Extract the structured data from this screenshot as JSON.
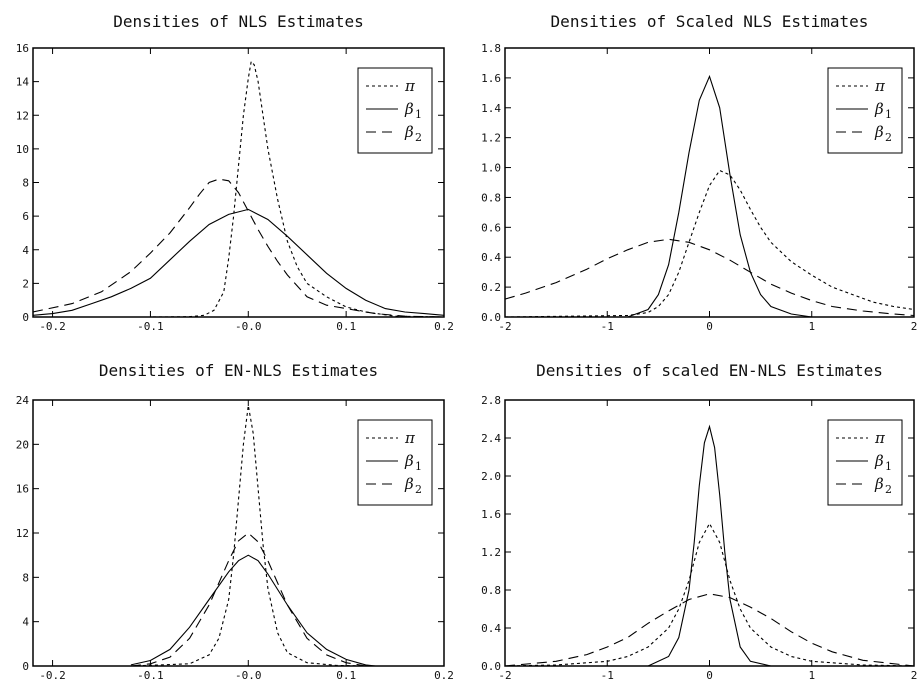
{
  "chart_data": [
    {
      "type": "line",
      "title": "Densities of NLS Estimates",
      "xlim": [
        -0.22,
        0.2
      ],
      "ylim": [
        0,
        16
      ],
      "xticks": [
        -0.2,
        -0.1,
        0.0,
        0.1,
        0.2
      ],
      "xtick_labels": [
        "-0.2",
        "-0.1",
        "-0.0",
        "0.1",
        "0.2"
      ],
      "yticks": [
        0,
        2,
        4,
        6,
        8,
        10,
        12,
        14,
        16
      ],
      "ytick_labels": [
        "0",
        "2",
        "4",
        "6",
        "8",
        "10",
        "12",
        "14",
        "16"
      ],
      "legend": {
        "position": "top-right",
        "entries": [
          {
            "symbol": "π",
            "sub": "",
            "style": "dotted"
          },
          {
            "symbol": "β",
            "sub": "1",
            "style": "solid"
          },
          {
            "symbol": "β",
            "sub": "2",
            "style": "dashed"
          }
        ]
      },
      "series": [
        {
          "style": "dotted",
          "x": [
            -0.22,
            -0.1,
            -0.06,
            -0.045,
            -0.035,
            -0.025,
            -0.02,
            -0.015,
            -0.01,
            -0.005,
            0,
            0.003,
            0.006,
            0.01,
            0.015,
            0.02,
            0.03,
            0.04,
            0.05,
            0.06,
            0.08,
            0.1,
            0.12,
            0.15,
            0.2
          ],
          "y": [
            0,
            0,
            0.02,
            0.1,
            0.4,
            1.5,
            3.5,
            6,
            9,
            12,
            14.2,
            15.2,
            15,
            14,
            12,
            10,
            7,
            4.5,
            3,
            2,
            1.2,
            0.6,
            0.3,
            0.05,
            0
          ]
        },
        {
          "style": "solid",
          "x": [
            -0.22,
            -0.2,
            -0.18,
            -0.16,
            -0.14,
            -0.12,
            -0.1,
            -0.08,
            -0.06,
            -0.04,
            -0.02,
            0,
            0.02,
            0.04,
            0.06,
            0.08,
            0.1,
            0.12,
            0.14,
            0.16,
            0.18,
            0.2
          ],
          "y": [
            0.1,
            0.2,
            0.4,
            0.8,
            1.2,
            1.7,
            2.3,
            3.4,
            4.5,
            5.5,
            6.1,
            6.4,
            5.8,
            4.8,
            3.7,
            2.6,
            1.7,
            1,
            0.5,
            0.3,
            0.2,
            0.1
          ]
        },
        {
          "style": "dashed",
          "x": [
            -0.22,
            -0.18,
            -0.15,
            -0.12,
            -0.1,
            -0.08,
            -0.06,
            -0.05,
            -0.04,
            -0.03,
            -0.02,
            -0.01,
            0,
            0.01,
            0.02,
            0.03,
            0.04,
            0.06,
            0.08,
            0.1,
            0.13,
            0.16,
            0.2
          ],
          "y": [
            0.3,
            0.8,
            1.5,
            2.7,
            3.8,
            5,
            6.5,
            7.3,
            8,
            8.2,
            8.1,
            7.4,
            6.3,
            5.2,
            4.2,
            3.3,
            2.5,
            1.2,
            0.7,
            0.5,
            0.2,
            0.05,
            0
          ]
        }
      ]
    },
    {
      "type": "line",
      "title": "Densities of Scaled NLS Estimates",
      "xlim": [
        -2,
        2
      ],
      "ylim": [
        0,
        1.8
      ],
      "xticks": [
        -2,
        -1,
        0,
        1,
        2
      ],
      "xtick_labels": [
        "-2",
        "-1",
        "0",
        "1",
        "2"
      ],
      "yticks": [
        0,
        0.2,
        0.4,
        0.6,
        0.8,
        1.0,
        1.2,
        1.4,
        1.6,
        1.8
      ],
      "ytick_labels": [
        "0.0",
        "0.2",
        "0.4",
        "0.6",
        "0.8",
        "1.0",
        "1.2",
        "1.4",
        "1.6",
        "1.8"
      ],
      "legend": {
        "position": "top-right",
        "entries": [
          {
            "symbol": "π",
            "sub": "",
            "style": "dotted"
          },
          {
            "symbol": "β",
            "sub": "1",
            "style": "solid"
          },
          {
            "symbol": "β",
            "sub": "2",
            "style": "dashed"
          }
        ]
      },
      "series": [
        {
          "style": "dotted",
          "x": [
            -2,
            -0.8,
            -0.6,
            -0.5,
            -0.4,
            -0.3,
            -0.2,
            -0.1,
            0,
            0.1,
            0.2,
            0.3,
            0.4,
            0.5,
            0.6,
            0.8,
            1,
            1.2,
            1.4,
            1.6,
            1.8,
            2
          ],
          "y": [
            0,
            0.01,
            0.03,
            0.07,
            0.15,
            0.3,
            0.5,
            0.7,
            0.88,
            0.98,
            0.95,
            0.85,
            0.72,
            0.6,
            0.5,
            0.37,
            0.28,
            0.2,
            0.15,
            0.1,
            0.07,
            0.05
          ]
        },
        {
          "style": "solid",
          "x": [
            -0.8,
            -0.6,
            -0.5,
            -0.4,
            -0.3,
            -0.2,
            -0.1,
            0,
            0.1,
            0.2,
            0.3,
            0.4,
            0.5,
            0.6,
            0.8,
            1
          ],
          "y": [
            0,
            0.05,
            0.15,
            0.35,
            0.7,
            1.1,
            1.45,
            1.61,
            1.4,
            0.95,
            0.55,
            0.3,
            0.15,
            0.07,
            0.02,
            0
          ]
        },
        {
          "style": "dashed",
          "x": [
            -2,
            -1.8,
            -1.5,
            -1.2,
            -1,
            -0.8,
            -0.6,
            -0.4,
            -0.2,
            0,
            0.2,
            0.4,
            0.6,
            0.8,
            1,
            1.2,
            1.5,
            1.8,
            2
          ],
          "y": [
            0.12,
            0.16,
            0.23,
            0.32,
            0.39,
            0.45,
            0.5,
            0.52,
            0.5,
            0.45,
            0.38,
            0.3,
            0.22,
            0.16,
            0.11,
            0.07,
            0.04,
            0.02,
            0.01
          ]
        }
      ]
    },
    {
      "type": "line",
      "title": "Densities of EN-NLS Estimates",
      "xlim": [
        -0.22,
        0.2
      ],
      "ylim": [
        0,
        24
      ],
      "xticks": [
        -0.2,
        -0.1,
        0.0,
        0.1,
        0.2
      ],
      "xtick_labels": [
        "-0.2",
        "-0.1",
        "-0.0",
        "0.1",
        "0.2"
      ],
      "yticks": [
        0,
        4,
        8,
        12,
        16,
        20,
        24
      ],
      "ytick_labels": [
        "0",
        "4",
        "8",
        "12",
        "16",
        "20",
        "24"
      ],
      "legend": {
        "position": "top-right",
        "entries": [
          {
            "symbol": "π",
            "sub": "",
            "style": "dotted"
          },
          {
            "symbol": "β",
            "sub": "1",
            "style": "solid"
          },
          {
            "symbol": "β",
            "sub": "2",
            "style": "dashed"
          }
        ]
      },
      "series": [
        {
          "style": "dotted",
          "x": [
            -0.12,
            -0.06,
            -0.04,
            -0.03,
            -0.02,
            -0.015,
            -0.01,
            -0.005,
            0,
            0.005,
            0.01,
            0.015,
            0.02,
            0.03,
            0.04,
            0.06,
            0.09,
            0.12
          ],
          "y": [
            0,
            0.2,
            1,
            2.5,
            6,
            10,
            15,
            20,
            23.5,
            21,
            16,
            11,
            7,
            3,
            1.2,
            0.3,
            0.05,
            0
          ]
        },
        {
          "style": "solid",
          "x": [
            -0.12,
            -0.1,
            -0.08,
            -0.06,
            -0.04,
            -0.02,
            -0.01,
            0,
            0.01,
            0.02,
            0.04,
            0.06,
            0.08,
            0.1,
            0.12,
            0.13
          ],
          "y": [
            0.1,
            0.5,
            1.5,
            3.5,
            6,
            8.5,
            9.5,
            10,
            9.5,
            8.3,
            5.5,
            3,
            1.5,
            0.6,
            0.1,
            0
          ]
        },
        {
          "style": "dashed",
          "x": [
            -0.12,
            -0.1,
            -0.08,
            -0.06,
            -0.04,
            -0.03,
            -0.02,
            -0.01,
            0,
            0.01,
            0.02,
            0.03,
            0.04,
            0.06,
            0.08,
            0.1,
            0.12
          ],
          "y": [
            0,
            0.2,
            0.8,
            2.5,
            5.5,
            7.5,
            9.5,
            11.3,
            12,
            11.2,
            9.5,
            7.5,
            5.5,
            2.5,
            1,
            0.3,
            0
          ]
        }
      ]
    },
    {
      "type": "line",
      "title": "Densities of scaled EN-NLS Estimates",
      "xlim": [
        -2,
        2
      ],
      "ylim": [
        0,
        2.8
      ],
      "xticks": [
        -2,
        -1,
        0,
        1,
        2
      ],
      "xtick_labels": [
        "-2",
        "-1",
        "0",
        "1",
        "2"
      ],
      "yticks": [
        0,
        0.4,
        0.8,
        1.2,
        1.6,
        2.0,
        2.4,
        2.8
      ],
      "ytick_labels": [
        "0.0",
        "0.4",
        "0.8",
        "1.2",
        "1.6",
        "2.0",
        "2.4",
        "2.8"
      ],
      "legend": {
        "position": "top-right",
        "entries": [
          {
            "symbol": "π",
            "sub": "",
            "style": "dotted"
          },
          {
            "symbol": "β",
            "sub": "1",
            "style": "solid"
          },
          {
            "symbol": "β",
            "sub": "2",
            "style": "dashed"
          }
        ]
      },
      "series": [
        {
          "style": "dotted",
          "x": [
            -2,
            -1.5,
            -1,
            -0.8,
            -0.6,
            -0.4,
            -0.3,
            -0.2,
            -0.1,
            0,
            0.1,
            0.2,
            0.3,
            0.4,
            0.6,
            0.8,
            1,
            1.5,
            2
          ],
          "y": [
            0,
            0.01,
            0.05,
            0.1,
            0.2,
            0.4,
            0.6,
            0.9,
            1.3,
            1.5,
            1.3,
            0.9,
            0.6,
            0.4,
            0.2,
            0.1,
            0.05,
            0.01,
            0
          ]
        },
        {
          "style": "solid",
          "x": [
            -0.6,
            -0.4,
            -0.3,
            -0.2,
            -0.15,
            -0.1,
            -0.05,
            0,
            0.05,
            0.1,
            0.15,
            0.2,
            0.3,
            0.4,
            0.6
          ],
          "y": [
            0,
            0.1,
            0.3,
            0.8,
            1.3,
            1.9,
            2.35,
            2.52,
            2.3,
            1.8,
            1.2,
            0.7,
            0.2,
            0.05,
            0
          ]
        },
        {
          "style": "dashed",
          "x": [
            -2,
            -1.5,
            -1.2,
            -1,
            -0.8,
            -0.6,
            -0.4,
            -0.2,
            0,
            0.2,
            0.4,
            0.6,
            0.8,
            1,
            1.2,
            1.5,
            2
          ],
          "y": [
            0,
            0.05,
            0.12,
            0.2,
            0.3,
            0.45,
            0.58,
            0.7,
            0.76,
            0.72,
            0.62,
            0.5,
            0.36,
            0.24,
            0.15,
            0.06,
            0
          ]
        }
      ]
    }
  ]
}
